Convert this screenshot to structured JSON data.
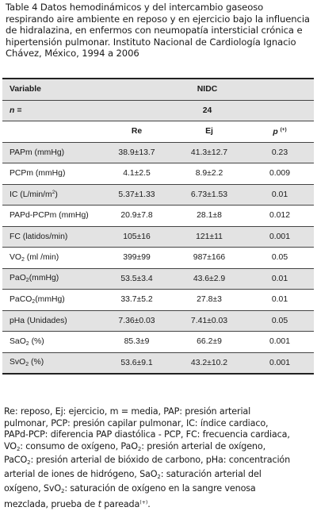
{
  "caption": "Table 4 Datos hemodinámicos y del intercambio gaseoso respirando aire ambiente en reposo y en ejercicio bajo la influencia de hidralazina, en enfermos con neumopatía intersticial crónica e hipertensión pulmonar. Instituto Nacional de Cardiología Ignacio Chávez, México, 1994 a 2006",
  "table": {
    "variable_header": "Variable",
    "group_header": "NIDC",
    "n_label": "n =",
    "n_value": "24",
    "col_re": "Re",
    "col_ej": "Ej",
    "col_p": "p",
    "col_p_sup": "(+)",
    "rows": [
      {
        "var": "PAPm (mmHg)",
        "re": "38.9±13.7",
        "ej": "41.3±12.7",
        "p": "0.23"
      },
      {
        "var": "PCPm (mmHg)",
        "re": "4.1±2.5",
        "ej": "8.9±2.2",
        "p": "0.009"
      },
      {
        "var_pre": "IC (L/min/m",
        "var_sup": "2",
        "var_post": ")",
        "re": "5.37±1.33",
        "ej": "6.73±1.53",
        "p": "0.01"
      },
      {
        "var": "PAPd-PCPm (mmHg)",
        "re": "20.9±7.8",
        "ej": "28.1±8",
        "p": "0.012"
      },
      {
        "var": "FC (latidos/min)",
        "re": "105±16",
        "ej": "121±11",
        "p": "0.001"
      },
      {
        "var_pre": "VO",
        "var_sub": "2",
        "var_post": " (ml /min)",
        "re": "399±99",
        "ej": "987±166",
        "p": "0.05"
      },
      {
        "var_pre": "PaO",
        "var_sub": "2",
        "var_post": "(mmHg)",
        "re": "53.5±3.4",
        "ej": "43.6±2.9",
        "p": "0.01"
      },
      {
        "var_pre": "PaCO",
        "var_sub": "2",
        "var_post": "(mmHg)",
        "re": "33.7±5.2",
        "ej": "27.8±3",
        "p": "0.01"
      },
      {
        "var": "pHa (Unidades)",
        "re": "7.36±0.03",
        "ej": "7.41±0.03",
        "p": "0.05"
      },
      {
        "var_pre": "SaO",
        "var_sub": "2",
        "var_post": " (%)",
        "re": "85.3±9",
        "ej": "66.2±9",
        "p": "0.001"
      },
      {
        "var_pre": "SvO",
        "var_sub": "2",
        "var_post": " (%)",
        "re": "53.6±9.1",
        "ej": "43.2±10.2",
        "p": "0.001"
      }
    ]
  },
  "footnote": {
    "l1": "Re: reposo, Ej: ejercicio, m = media, PAP: presión arterial",
    "l2": "pulmonar, PCP: presión capilar pulmonar, IC: índice cardiaco,",
    "l3": "PAPd-PCP: diferencia PAP diastólica - PCP, FC: frecuencia cardiaca,",
    "l4_a": "VO",
    "l4_b": ": consumo de oxígeno, PaO",
    "l4_c": ": presión arterial de oxígeno,",
    "l5_a": "PaCO",
    "l5_b": ": presión arterial de bióxido de carbono, pHa: concentración",
    "l6_a": "arterial de iones de hidrógeno, SaO",
    "l6_b": ": saturación arterial del",
    "l7_a": "oxígeno, SvO",
    "l7_b": ": saturación de oxígeno en la sangre venosa",
    "l8_a": "mezclada, prueba de ",
    "l8_t": "t",
    "l8_b": " pareada",
    "l8_sup": "(+)",
    "l8_c": ".",
    "sub2": "2"
  }
}
